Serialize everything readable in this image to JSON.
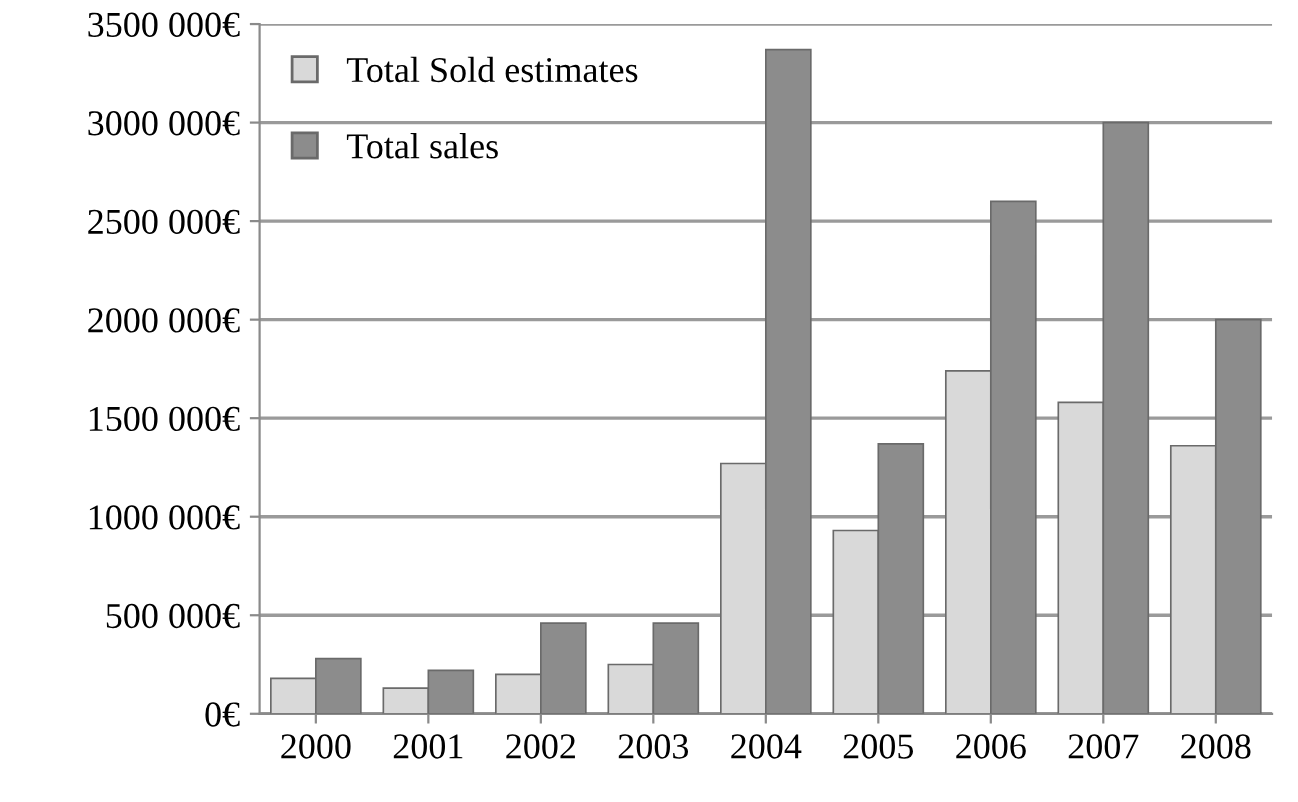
{
  "chart_data": {
    "type": "bar",
    "categories": [
      "2000",
      "2001",
      "2002",
      "2003",
      "2004",
      "2005",
      "2006",
      "2007",
      "2008"
    ],
    "series": [
      {
        "name": "Total Sold estimates",
        "color": "#d9d9d9",
        "values": [
          180000,
          130000,
          200000,
          250000,
          1270000,
          930000,
          1740000,
          1580000,
          1360000
        ]
      },
      {
        "name": "Total sales",
        "color": "#8c8c8c",
        "values": [
          280000,
          220000,
          460000,
          460000,
          3370000,
          1370000,
          2600000,
          3000000,
          2000000
        ]
      }
    ],
    "ylim": [
      0,
      3500000
    ],
    "yticks": [
      {
        "value": 0,
        "label": "0€"
      },
      {
        "value": 500000,
        "label": "500 000€"
      },
      {
        "value": 1000000,
        "label": "1000 000€"
      },
      {
        "value": 1500000,
        "label": "1500 000€"
      },
      {
        "value": 2000000,
        "label": "2000 000€"
      },
      {
        "value": 2500000,
        "label": "2500 000€"
      },
      {
        "value": 3000000,
        "label": "3000 000€"
      },
      {
        "value": 3500000,
        "label": "3500 000€"
      }
    ],
    "grid": "y",
    "legend": "top left"
  }
}
